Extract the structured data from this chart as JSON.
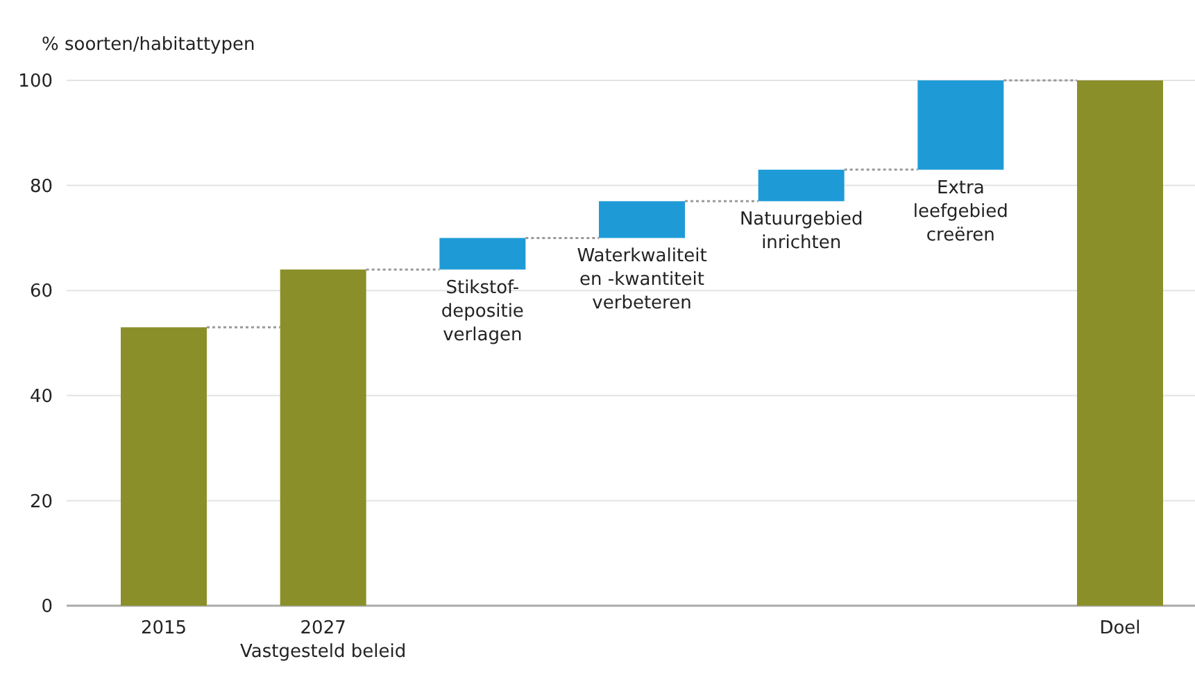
{
  "chart_data": {
    "type": "bar",
    "ylabel": "% soorten/habitattypen",
    "categories": [
      "2015",
      "2027\nVastgesteld beleid",
      "Stikstof-\ndepositie\nverlagen",
      "Waterkwaliteit\nen -kwantiteit\nverbeteren",
      "Natuurgebied\ninrichten",
      "Extra\nleefgebied\ncreëren",
      "Doel"
    ],
    "values": [
      53,
      64,
      6,
      7,
      6,
      17,
      100
    ],
    "base": [
      0,
      0,
      64,
      70,
      77,
      83,
      0
    ],
    "colors": [
      "#8a8f2a",
      "#8a8f2a",
      "#1e9bd7",
      "#1e9bd7",
      "#1e9bd7",
      "#1e9bd7",
      "#8a8f2a"
    ],
    "ylim": [
      0,
      100
    ],
    "yticks": [
      0,
      20,
      40,
      60,
      80,
      100
    ],
    "grid": "y"
  }
}
